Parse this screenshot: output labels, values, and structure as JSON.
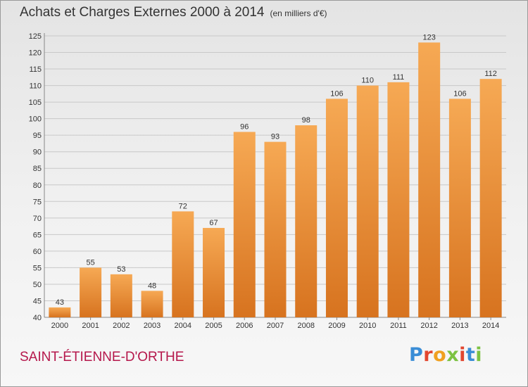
{
  "title": "Achats et Charges Externes 2000 à 2014",
  "subtitle": "(en milliers d'€)",
  "commune": "SAINT-ÉTIENNE-D'ORTHE",
  "logo": {
    "text": "Proxiti",
    "letter_colors": [
      "#3a8dd6",
      "#e2462f",
      "#f0a020",
      "#7cc242",
      "#e2462f",
      "#3a8dd6",
      "#7cc242"
    ]
  },
  "colors": {
    "bar_top": "#f6a954",
    "bar_bottom": "#d7731f",
    "grid": "#c8c8c8",
    "commune": "#b5174b"
  },
  "chart_data": {
    "type": "bar",
    "title": "Achats et Charges Externes 2000 à 2014",
    "subtitle": "(en milliers d'€)",
    "categories": [
      "2000",
      "2001",
      "2002",
      "2003",
      "2004",
      "2005",
      "2006",
      "2007",
      "2008",
      "2009",
      "2010",
      "2011",
      "2012",
      "2013",
      "2014"
    ],
    "values": [
      43,
      55,
      53,
      48,
      72,
      67,
      96,
      93,
      98,
      106,
      110,
      111,
      123,
      106,
      112
    ],
    "ylim": [
      40,
      125
    ],
    "ytick_step": 5,
    "grid": true,
    "data_labels": true,
    "xlabel": "",
    "ylabel": ""
  }
}
